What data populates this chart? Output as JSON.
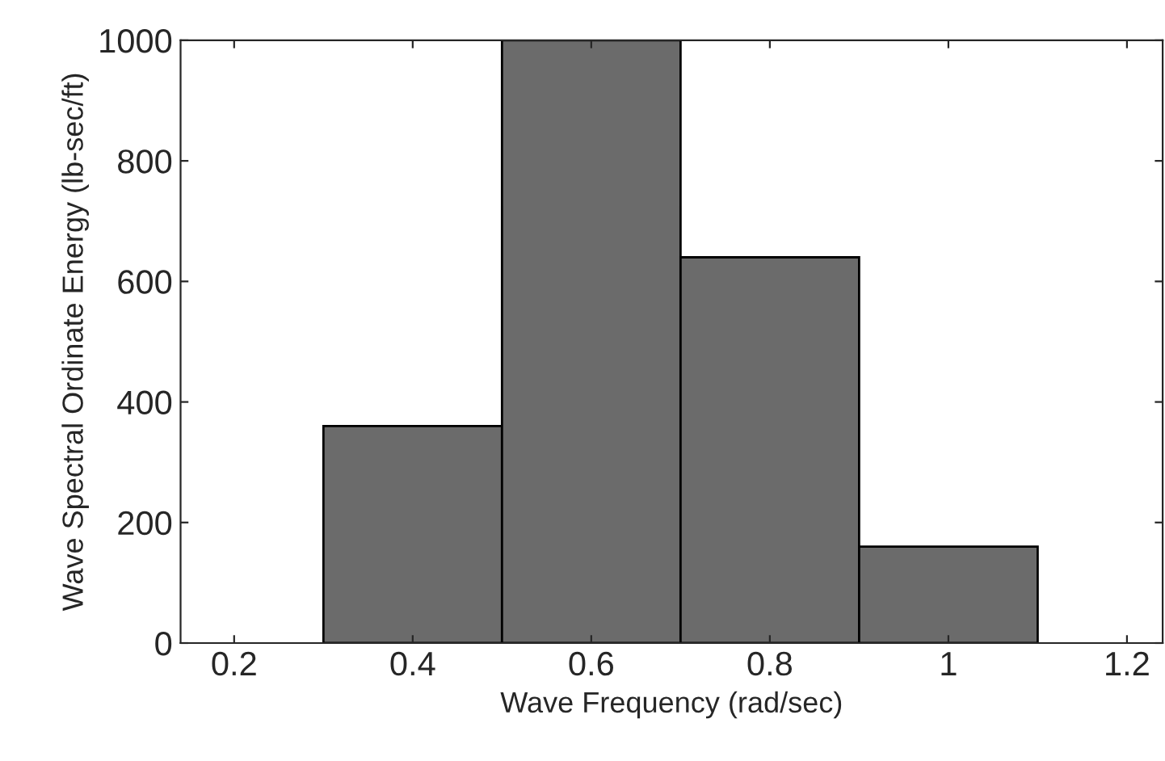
{
  "chart_data": {
    "type": "histogram",
    "xlabel": "Wave Frequency (rad/sec)",
    "ylabel": "Wave Spectral Ordinate Energy (lb-sec/ft)",
    "bins": [
      0.3,
      0.5,
      0.7,
      0.9,
      1.1
    ],
    "values": [
      360,
      1000,
      640,
      160
    ],
    "color": "#6b6b6b",
    "xlim": [
      0.14,
      1.24
    ],
    "xticks": [
      0.2,
      0.4,
      0.6,
      0.8,
      {
        "value": 1.0,
        "label": "1"
      },
      1.2
    ],
    "ylim": [
      0,
      1000
    ],
    "yticks": [
      0,
      200,
      400,
      600,
      800,
      1000
    ],
    "grid": false,
    "legend": false
  }
}
